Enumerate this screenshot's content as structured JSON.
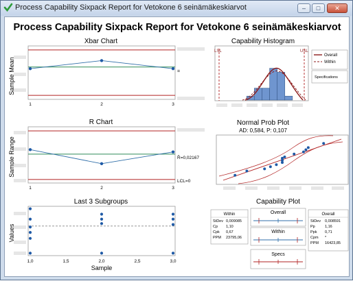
{
  "window": {
    "title": "Process Capability Sixpack Report for Vetokone 6 seinämäkeskiarvot",
    "min_label": "–",
    "max_label": "□",
    "close_label": "✕",
    "icon": "minitab-check-icon"
  },
  "report_title": "Process Capability Sixpack Report for Vetokone 6 seinämäkeskiarvot",
  "xbar": {
    "title": "Xbar Chart",
    "ylabel": "Sample Mean",
    "xticks": [
      "1",
      "2",
      "3"
    ],
    "center_label": "="
  },
  "rchart": {
    "title": "R Chart",
    "ylabel": "Sample Range",
    "xticks": [
      "1",
      "2",
      "3"
    ],
    "center_label": "R̄=0,02167",
    "lcl_label": "LCL=0"
  },
  "subgroups": {
    "title": "Last 3 Subgroups",
    "ylabel": "Values",
    "xlabel": "Sample",
    "xticks": [
      "1,0",
      "1,5",
      "2,0",
      "2,5",
      "3,0"
    ]
  },
  "histogram": {
    "title": "Capability Histogram",
    "lsl_label": "LSL",
    "usl_label": "USL",
    "legend": {
      "overall": "Overall",
      "within": "Within",
      "specs": "Specifications"
    }
  },
  "normal": {
    "title": "Normal Prob Plot",
    "subtitle": "AD: 0,584, P: 0,107"
  },
  "capability": {
    "title": "Capability Plot",
    "within_box": {
      "title": "Within",
      "rows": [
        {
          "k": "StDev",
          "v": "0,009085"
        },
        {
          "k": "Cp",
          "v": "1,10"
        },
        {
          "k": "Cpk",
          "v": "0,67"
        },
        {
          "k": "PPM",
          "v": "23795,06"
        }
      ]
    },
    "overall_box": {
      "title": "Overall",
      "rows": [
        {
          "k": "StDev",
          "v": "0,008591"
        },
        {
          "k": "Pp",
          "v": "1,16"
        },
        {
          "k": "Ppk",
          "v": "0,71"
        },
        {
          "k": "Cpm",
          "v": "*"
        },
        {
          "k": "PPM",
          "v": "16423,85"
        }
      ]
    },
    "bars": {
      "overall": "Overall",
      "within": "Within",
      "specs": "Specs"
    }
  },
  "chart_data": [
    {
      "type": "line",
      "name": "Xbar Chart",
      "x": [
        1,
        2,
        3
      ],
      "values": [
        0.3,
        0.9,
        0.3
      ],
      "center": 0.42,
      "ucl": 1.7,
      "lcl": -1.7,
      "ylim": [
        -2,
        2
      ]
    },
    {
      "type": "line",
      "name": "R Chart",
      "x": [
        1,
        2,
        3
      ],
      "values": [
        0.0255,
        0.0135,
        0.0235
      ],
      "center": 0.02167,
      "ucl": 0.0415,
      "lcl": 0,
      "ylim": [
        -0.003,
        0.045
      ]
    },
    {
      "type": "scatter",
      "name": "Last 3 Subgroups",
      "points": [
        [
          1,
          0.95
        ],
        [
          1,
          0.74
        ],
        [
          1,
          0.58
        ],
        [
          1,
          0.47
        ],
        [
          1,
          0.35
        ],
        [
          1,
          0.05
        ],
        [
          2,
          0.84
        ],
        [
          2,
          0.74
        ],
        [
          2,
          0.65
        ],
        [
          2,
          0.05
        ],
        [
          3,
          0.84
        ],
        [
          3,
          0.74
        ],
        [
          3,
          0.63
        ],
        [
          3,
          0.05
        ]
      ],
      "mean": 0.6,
      "xlim": [
        1,
        3
      ]
    },
    {
      "type": "bar",
      "name": "Capability Histogram",
      "bin_counts": [
        0,
        0,
        1,
        3,
        3,
        8,
        7,
        1,
        0
      ],
      "lsl": 0.0,
      "usl": 1.0
    },
    {
      "type": "scatter",
      "name": "Normal Prob Plot",
      "points": [
        [
          0.1,
          0.15
        ],
        [
          0.2,
          0.25
        ],
        [
          0.35,
          0.3
        ],
        [
          0.4,
          0.35
        ],
        [
          0.45,
          0.4
        ],
        [
          0.5,
          0.45
        ],
        [
          0.5,
          0.5
        ],
        [
          0.5,
          0.55
        ],
        [
          0.52,
          0.58
        ],
        [
          0.6,
          0.65
        ],
        [
          0.68,
          0.7
        ],
        [
          0.7,
          0.75
        ],
        [
          0.72,
          0.8
        ],
        [
          0.85,
          0.9
        ]
      ]
    }
  ]
}
